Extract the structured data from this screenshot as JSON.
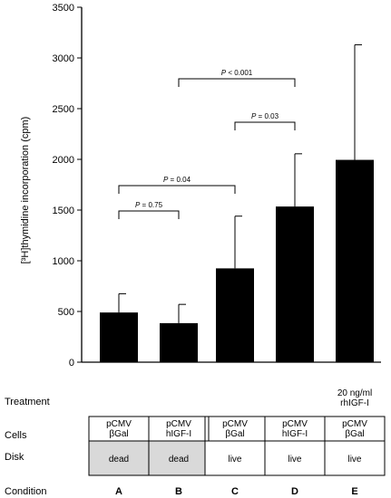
{
  "chart_data": {
    "type": "bar",
    "ylabel": "[³H]thymidine incorporation (cpm)",
    "ylim": [
      0,
      3500
    ],
    "yticks": [
      0,
      500,
      1000,
      1500,
      2000,
      2500,
      3000,
      3500
    ],
    "categories": [
      "A",
      "B",
      "C",
      "D",
      "E"
    ],
    "values": [
      490,
      385,
      925,
      1535,
      1995
    ],
    "error_upper": [
      185,
      185,
      515,
      520,
      1135
    ],
    "bar_color": "#000000",
    "comparisons": [
      {
        "from": "A",
        "to": "B",
        "label": "P = 0.75",
        "p_symbol": "P",
        "p_rest": " = 0.75"
      },
      {
        "from": "A",
        "to": "C",
        "label": "P = 0.04",
        "p_symbol": "P",
        "p_rest": " = 0.04"
      },
      {
        "from": "C",
        "to": "D",
        "label": "P = 0.03",
        "p_symbol": "P",
        "p_rest": " = 0.03"
      },
      {
        "from": "B",
        "to": "D",
        "label": "P < 0.001",
        "p_symbol": "P",
        "p_rest": " < 0.001"
      }
    ]
  },
  "table": {
    "row_labels": {
      "treatment": "Treatment",
      "cells": "Cells",
      "disk": "Disk",
      "condition": "Condition"
    },
    "treatment_values": [
      "",
      "",
      "",
      "",
      "20 ng/ml\nrhIGF-I"
    ],
    "cells_values": [
      "pCMV\nβGal",
      "pCMV\nhIGF-I",
      "pCMV\nβGal",
      "pCMV\nhIGF-I",
      "pCMV\nβGal"
    ],
    "disk_values": [
      "dead",
      "dead",
      "live",
      "live",
      "live"
    ],
    "disk_dead_fill": "#d9d9d9",
    "condition_values": [
      "A",
      "B",
      "C",
      "D",
      "E"
    ]
  }
}
